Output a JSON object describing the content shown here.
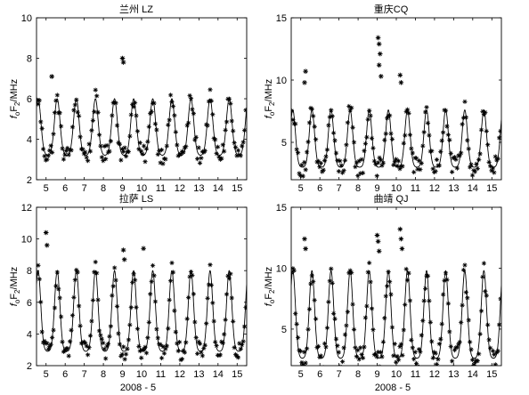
{
  "figure": {
    "xlabel": "2008 - 5",
    "ylabel_main": "f",
    "ylabel_sub_o": "o",
    "ylabel_F": "F",
    "ylabel_sub_2": "2",
    "ylabel_unit": "/MHz"
  },
  "chart_data": [
    {
      "type": "line",
      "title": "兰州 LZ",
      "xlim": [
        4.5,
        15.5
      ],
      "ylim": [
        2,
        10
      ],
      "xticks": [
        5,
        6,
        7,
        8,
        9,
        10,
        11,
        12,
        13,
        14,
        15
      ],
      "yticks": [
        2,
        4,
        6,
        8,
        10
      ],
      "model": {
        "base": 3.2,
        "amp": 2.8,
        "peak_hour": 14,
        "width": 0.32
      },
      "observed_series": {
        "name": "",
        "noise": 0.45,
        "outliers": [
          [
            9.0,
            8.0
          ],
          [
            9.05,
            7.8
          ],
          [
            5.3,
            7.1
          ]
        ]
      }
    },
    {
      "type": "line",
      "title": "重庆CQ",
      "xlim": [
        4.5,
        15.5
      ],
      "ylim": [
        2,
        15
      ],
      "xticks": [
        5,
        6,
        7,
        8,
        9,
        10,
        11,
        12,
        13,
        14,
        15
      ],
      "yticks": [
        5,
        10,
        15
      ],
      "model": {
        "base": 3.0,
        "amp": 4.6,
        "peak_hour": 14,
        "width": 0.3
      },
      "observed_series": {
        "name": "",
        "noise": 0.8,
        "outliers": [
          [
            9.05,
            13.4
          ],
          [
            9.1,
            12.9
          ],
          [
            9.15,
            12.1
          ],
          [
            9.1,
            11.2
          ],
          [
            9.2,
            10.3
          ],
          [
            10.2,
            10.4
          ],
          [
            10.25,
            9.8
          ],
          [
            5.25,
            10.7
          ],
          [
            5.2,
            9.8
          ]
        ]
      }
    },
    {
      "type": "line",
      "title": "拉萨 LS",
      "xlim": [
        4.5,
        15.5
      ],
      "ylim": [
        2,
        12
      ],
      "xticks": [
        5,
        6,
        7,
        8,
        9,
        10,
        11,
        12,
        13,
        14,
        15
      ],
      "yticks": [
        2,
        4,
        6,
        8,
        10,
        12
      ],
      "model": {
        "base": 2.9,
        "amp": 5.1,
        "peak_hour": 14,
        "width": 0.3
      },
      "observed_series": {
        "name": "",
        "noise": 0.55,
        "outliers": [
          [
            5.0,
            10.4
          ],
          [
            5.05,
            9.6
          ],
          [
            9.05,
            9.3
          ],
          [
            10.1,
            9.4
          ],
          [
            9.1,
            8.7
          ]
        ]
      }
    },
    {
      "type": "line",
      "title": "曲靖 QJ",
      "xlim": [
        4.5,
        15.5
      ],
      "ylim": [
        2,
        15
      ],
      "xticks": [
        5,
        6,
        7,
        8,
        9,
        10,
        11,
        12,
        13,
        14,
        15
      ],
      "yticks": [
        5,
        10,
        15
      ],
      "model": {
        "base": 2.6,
        "amp": 7.2,
        "peak_hour": 14,
        "width": 0.3
      },
      "observed_series": {
        "name": "",
        "noise": 0.9,
        "outliers": [
          [
            9.0,
            12.7
          ],
          [
            9.05,
            12.2
          ],
          [
            9.1,
            11.4
          ],
          [
            10.2,
            13.2
          ],
          [
            10.25,
            12.4
          ],
          [
            10.3,
            11.6
          ],
          [
            5.2,
            12.4
          ],
          [
            5.25,
            11.6
          ]
        ]
      }
    }
  ]
}
